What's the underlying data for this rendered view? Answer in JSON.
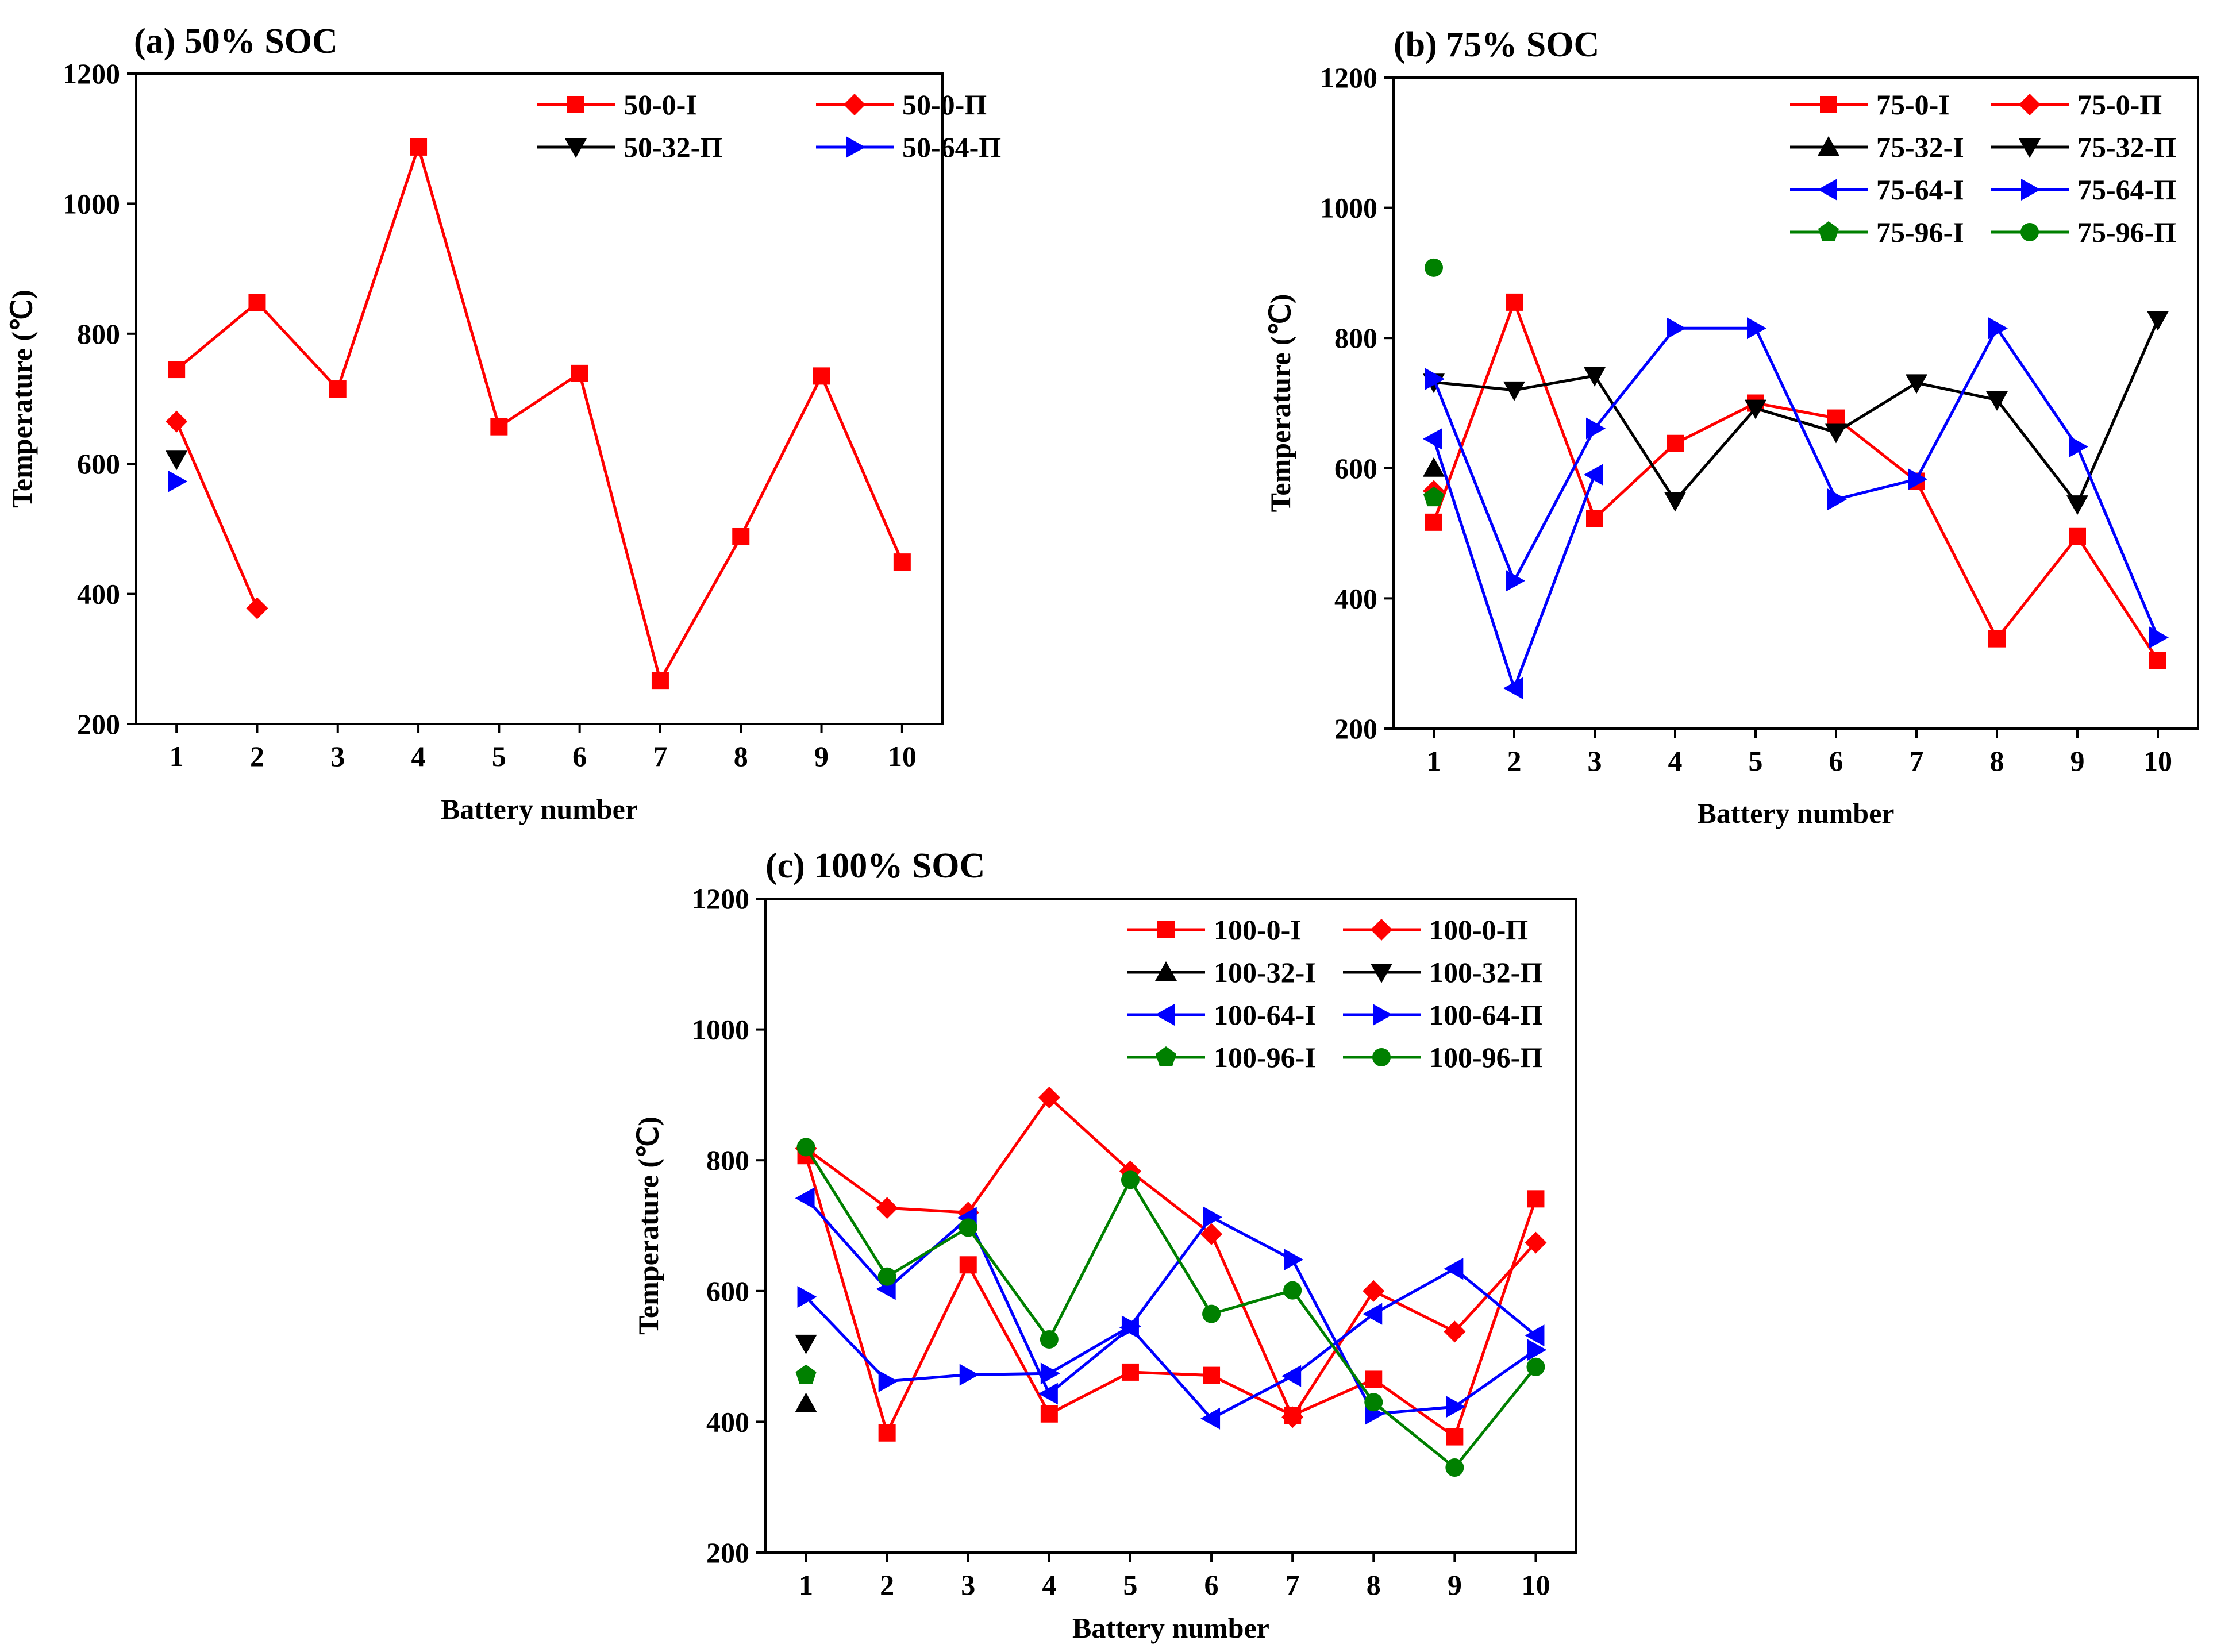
{
  "colors": {
    "red": "#ff0000",
    "black": "#000000",
    "blue": "#0000ff",
    "green": "#008000"
  },
  "chart_data": [
    {
      "type": "line",
      "title": "(a) 50% SOC",
      "xlabel": "Battery number",
      "ylabel": "Temperature (℃)",
      "xlim": [
        0.5,
        10.5
      ],
      "ylim": [
        200,
        1200
      ],
      "xticks": [
        1,
        2,
        3,
        4,
        5,
        6,
        7,
        8,
        9,
        10
      ],
      "yticks": [
        200,
        400,
        600,
        800,
        1000,
        1200
      ],
      "legend_position": "top-right",
      "legend_columns": 2,
      "series": [
        {
          "name": "50-0-I",
          "color": "#ff0000",
          "marker": "square",
          "x": [
            1,
            2,
            3,
            4,
            5,
            6,
            7,
            8,
            9,
            10
          ],
          "y": [
            745,
            848,
            715,
            1087,
            657,
            739,
            267,
            488,
            735,
            449
          ]
        },
        {
          "name": "50-0-Π",
          "color": "#ff0000",
          "marker": "diamond",
          "x": [
            1,
            2
          ],
          "y": [
            665,
            378
          ]
        },
        {
          "name": "50-32-Π",
          "color": "#000000",
          "marker": "triangle-down",
          "x": [
            1
          ],
          "y": [
            607
          ]
        },
        {
          "name": "50-64-Π",
          "color": "#0000ff",
          "marker": "triangle-right",
          "x": [
            1
          ],
          "y": [
            573
          ]
        }
      ]
    },
    {
      "type": "line",
      "title": "(b) 75% SOC",
      "xlabel": "Battery number",
      "ylabel": "Temperature (℃)",
      "xlim": [
        0.5,
        10.5
      ],
      "ylim": [
        200,
        1200
      ],
      "xticks": [
        1,
        2,
        3,
        4,
        5,
        6,
        7,
        8,
        9,
        10
      ],
      "yticks": [
        200,
        400,
        600,
        800,
        1000,
        1200
      ],
      "legend_position": "top-right",
      "legend_columns": 2,
      "series": [
        {
          "name": "75-0-I",
          "color": "#ff0000",
          "marker": "square",
          "x": [
            1,
            2,
            3,
            4,
            5,
            6,
            7,
            8,
            9,
            10
          ],
          "y": [
            517,
            855,
            523,
            638,
            700,
            677,
            580,
            338,
            495,
            305
          ]
        },
        {
          "name": "75-0-Π",
          "color": "#ff0000",
          "marker": "diamond",
          "x": [
            1
          ],
          "y": [
            565
          ]
        },
        {
          "name": "75-32-I",
          "color": "#000000",
          "marker": "triangle-up",
          "x": [
            1
          ],
          "y": [
            600
          ]
        },
        {
          "name": "75-32-Π",
          "color": "#000000",
          "marker": "triangle-down",
          "x": [
            1,
            2,
            3,
            4,
            5,
            6,
            7,
            8,
            9,
            10
          ],
          "y": [
            732,
            720,
            742,
            550,
            692,
            655,
            731,
            705,
            545,
            828
          ]
        },
        {
          "name": "75-64-I",
          "color": "#0000ff",
          "marker": "triangle-left",
          "x": [
            1,
            2,
            3
          ],
          "y": [
            645,
            262,
            590
          ]
        },
        {
          "name": "75-64-Π",
          "color": "#0000ff",
          "marker": "triangle-right",
          "x": [
            1,
            2,
            3,
            4,
            5,
            6,
            7,
            8,
            9,
            10
          ],
          "y": [
            737,
            427,
            661,
            815,
            815,
            552,
            583,
            815,
            633,
            340
          ]
        },
        {
          "name": "75-96-I",
          "color": "#008000",
          "marker": "pentagon",
          "x": [
            1
          ],
          "y": [
            555
          ]
        },
        {
          "name": "75-96-Π",
          "color": "#008000",
          "marker": "circle",
          "x": [
            1
          ],
          "y": [
            908
          ]
        }
      ]
    },
    {
      "type": "line",
      "title": "(c) 100% SOC",
      "xlabel": "Battery number",
      "ylabel": "Temperature (℃)",
      "xlim": [
        0.5,
        10.5
      ],
      "ylim": [
        200,
        1200
      ],
      "xticks": [
        1,
        2,
        3,
        4,
        5,
        6,
        7,
        8,
        9,
        10
      ],
      "yticks": [
        200,
        400,
        600,
        800,
        1000,
        1200
      ],
      "legend_position": "top-right",
      "legend_columns": 2,
      "series": [
        {
          "name": "100-0-I",
          "color": "#ff0000",
          "marker": "square",
          "x": [
            1,
            2,
            3,
            4,
            5,
            6,
            7,
            8,
            9,
            10
          ],
          "y": [
            807,
            383,
            640,
            412,
            476,
            471,
            410,
            465,
            377,
            741
          ]
        },
        {
          "name": "100-0-Π",
          "color": "#ff0000",
          "marker": "diamond",
          "x": [
            1,
            2,
            3,
            4,
            5,
            6,
            7,
            8,
            9,
            10
          ],
          "y": [
            818,
            727,
            720,
            896,
            783,
            687,
            407,
            600,
            538,
            674
          ]
        },
        {
          "name": "100-32-I",
          "color": "#000000",
          "marker": "triangle-up",
          "x": [
            1
          ],
          "y": [
            428
          ]
        },
        {
          "name": "100-32-Π",
          "color": "#000000",
          "marker": "triangle-down",
          "x": [
            1
          ],
          "y": [
            520
          ]
        },
        {
          "name": "100-64-I",
          "color": "#0000ff",
          "marker": "triangle-left",
          "x": [
            1,
            2,
            3,
            4,
            5,
            6,
            7,
            8,
            9,
            10
          ],
          "y": [
            742,
            603,
            712,
            443,
            544,
            405,
            470,
            565,
            634,
            532
          ]
        },
        {
          "name": "100-64-Π",
          "color": "#0000ff",
          "marker": "triangle-right",
          "x": [
            1,
            2,
            3,
            4,
            5,
            6,
            7,
            8,
            9,
            10
          ],
          "y": [
            591,
            462,
            472,
            474,
            546,
            713,
            648,
            412,
            423,
            510
          ]
        },
        {
          "name": "100-96-I",
          "color": "#008000",
          "marker": "pentagon",
          "x": [
            1
          ],
          "y": [
            471
          ]
        },
        {
          "name": "100-96-Π",
          "color": "#008000",
          "marker": "circle",
          "x": [
            1,
            2,
            3,
            4,
            5,
            6,
            7,
            8,
            9,
            10
          ],
          "y": [
            820,
            622,
            697,
            526,
            770,
            565,
            601,
            430,
            330,
            484
          ]
        }
      ]
    }
  ]
}
